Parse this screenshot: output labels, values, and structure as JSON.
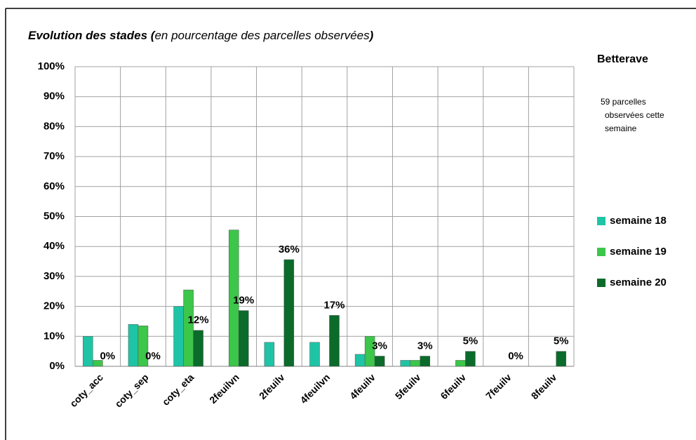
{
  "chart_data": {
    "type": "bar",
    "title": "Evolution des stades (",
    "subtitle": "en pourcentage  des parcelles observées",
    "title_end": ")",
    "annotations": [
      "Betterave",
      "59 parcelles",
      "observées cette",
      "semaine"
    ],
    "categories": [
      "coty_acc",
      "coty_sep",
      "coty_eta",
      "2feuilvn",
      "2feuilv",
      "4feuilvn",
      "4feuilv",
      "5feuilv",
      "6feuilv",
      "7feuilv",
      "8feuilv"
    ],
    "series": [
      {
        "name": "semaine 18",
        "color": "#1fc4a6",
        "values": [
          10,
          14,
          20,
          0,
          8,
          8,
          4,
          2,
          0,
          0,
          0
        ]
      },
      {
        "name": "semaine 19",
        "color": "#3cc64a",
        "values": [
          2,
          13.5,
          25.5,
          45.5,
          0,
          0,
          10,
          2,
          2,
          0,
          0
        ]
      },
      {
        "name": "semaine 20",
        "color": "#0b6b2b",
        "values": [
          0,
          0,
          12,
          18.6,
          35.6,
          17,
          3.4,
          3.4,
          5,
          0,
          5
        ],
        "value_labels": [
          "0%",
          "0%",
          "12%",
          "19%",
          "36%",
          "17%",
          "3%",
          "3%",
          "5%",
          "0%",
          "5%"
        ]
      }
    ],
    "ylim": [
      0,
      100
    ],
    "yticks": [
      {
        "value": 0,
        "label": "0%"
      },
      {
        "value": 10,
        "label": "10%"
      },
      {
        "value": 20,
        "label": "20%"
      },
      {
        "value": 30,
        "label": "30%"
      },
      {
        "value": 40,
        "label": "40%"
      },
      {
        "value": 50,
        "label": "50%"
      },
      {
        "value": 60,
        "label": "60%"
      },
      {
        "value": 70,
        "label": "70%"
      },
      {
        "value": 80,
        "label": "80%"
      },
      {
        "value": 90,
        "label": "90%"
      },
      {
        "value": 100,
        "label": "100%"
      }
    ],
    "grid": true,
    "legend": "right"
  }
}
